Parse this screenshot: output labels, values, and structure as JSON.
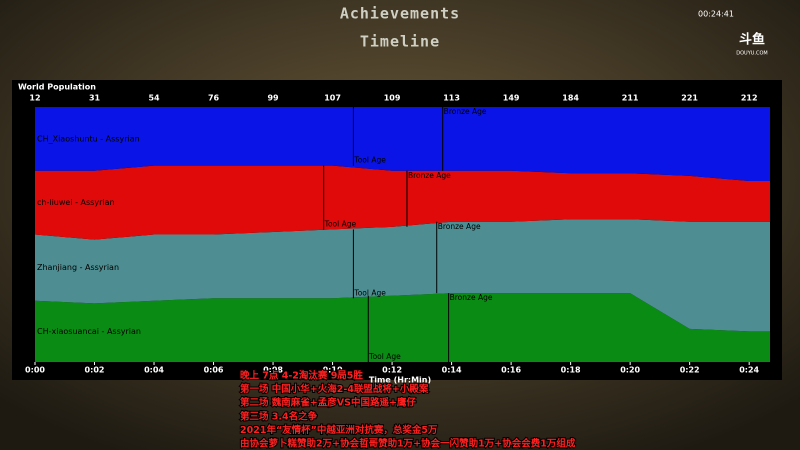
{
  "header": {
    "title": "Achievements",
    "subtitle": "Timeline",
    "clock": "00:24:41",
    "logo": "斗鱼",
    "logo_url": "DOUYU.COM"
  },
  "chart_data": {
    "type": "stacked-area",
    "title": "World Population",
    "xlabel": "Time (Hr:Min)",
    "x": [
      0,
      2,
      4,
      6,
      8,
      10,
      12,
      14,
      16,
      18,
      20,
      22,
      24
    ],
    "xlim": [
      0,
      24.7
    ],
    "xticks": [
      {
        "value": 0,
        "label": "0:00"
      },
      {
        "value": 2,
        "label": "0:02"
      },
      {
        "value": 4,
        "label": "0:04"
      },
      {
        "value": 6,
        "label": "0:06"
      },
      {
        "value": 8,
        "label": "0:08"
      },
      {
        "value": 10,
        "label": "0:10"
      },
      {
        "value": 12,
        "label": "0:12"
      },
      {
        "value": 14,
        "label": "0:14"
      },
      {
        "value": 16,
        "label": "0:16"
      },
      {
        "value": 18,
        "label": "0:18"
      },
      {
        "value": 20,
        "label": "0:20"
      },
      {
        "value": 22,
        "label": "0:22"
      },
      {
        "value": 24,
        "label": "0:24"
      }
    ],
    "population": [
      12,
      31,
      54,
      76,
      99,
      107,
      109,
      113,
      149,
      184,
      211,
      221,
      212
    ],
    "series": [
      {
        "name": "CH-xiaosuancai - Assyrian",
        "color": "#0a8c14",
        "values": [
          24,
          23,
          24,
          25,
          25,
          25,
          26,
          27,
          27,
          27,
          27,
          13,
          12
        ],
        "ages": [
          {
            "label": "Tool Age",
            "time": 11.2
          },
          {
            "label": "Bronze Age",
            "time": 13.9
          }
        ]
      },
      {
        "name": "Zhanjiang - Assyrian",
        "color": "#4e8e92",
        "values": [
          26,
          25,
          26,
          25,
          26,
          27,
          27,
          28,
          28,
          29,
          29,
          42,
          43
        ],
        "ages": [
          {
            "label": "Tool Age",
            "time": 10.7
          },
          {
            "label": "Bronze Age",
            "time": 13.5
          }
        ]
      },
      {
        "name": "ch-liuwei - Assyrian",
        "color": "#e00a0a",
        "values": [
          25,
          27,
          27,
          27,
          26,
          25,
          22,
          20,
          20,
          18,
          18,
          18,
          16
        ],
        "ages": [
          {
            "label": "Tool Age",
            "time": 9.7
          },
          {
            "label": "Bronze Age",
            "time": 12.5
          }
        ]
      },
      {
        "name": "CH_Xiaoshuntu - Assyrian",
        "color": "#0a14e6",
        "values": [
          25,
          25,
          23,
          23,
          23,
          23,
          25,
          25,
          25,
          26,
          26,
          27,
          29
        ],
        "ages": [
          {
            "label": "Tool Age",
            "time": 10.7
          },
          {
            "label": "Bronze Age",
            "time": 13.7
          }
        ]
      }
    ]
  },
  "overlay": {
    "lines": [
      "晚上 7点 4-2淘汰赛 9局5胜",
      "第一场 中国小华+火海2-4联盟战将+小殿案",
      "第二场 魏南麻雀+孟彦VS中国路遥+鹰仔",
      "第三场 3.4名之争",
      "2021年“友情杯”中越亚洲对抗赛，总奖金5万",
      "由协会萝卜糕赞助2万+协会哲哥赞助1万+协会一闪赞助1万+协会会费1万组成"
    ]
  }
}
